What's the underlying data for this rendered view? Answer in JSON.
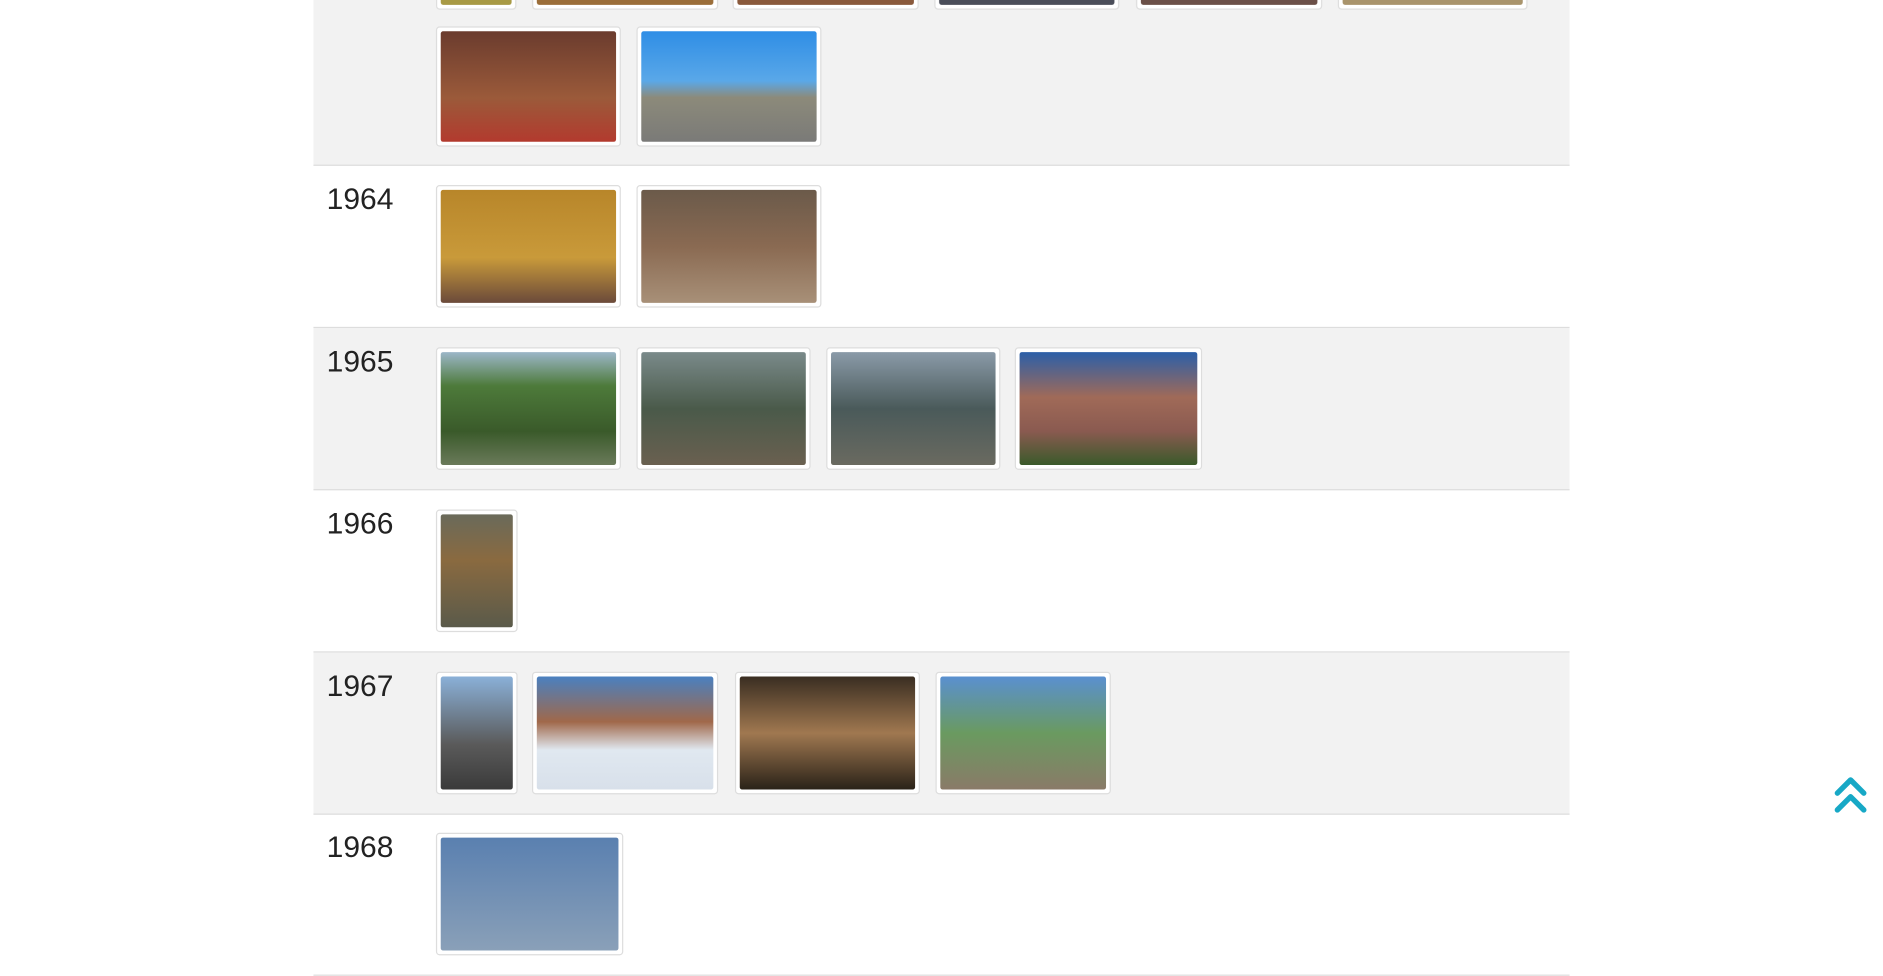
{
  "rows": [
    {
      "year": "1964"
    },
    {
      "year": "1965"
    },
    {
      "year": "1966"
    },
    {
      "year": "1967"
    },
    {
      "year": "1968"
    }
  ]
}
